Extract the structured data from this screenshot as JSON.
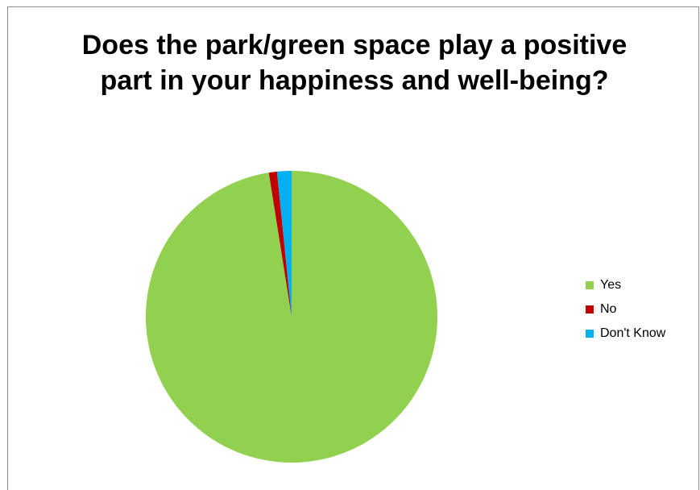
{
  "chart_data": {
    "type": "pie",
    "title": "Does the park/green space play a positive part in your happiness and well-being?",
    "categories": [
      "Yes",
      "No",
      "Don't Know"
    ],
    "values": [
      97.5,
      0.9,
      1.6
    ],
    "colors": [
      "#92d050",
      "#c00000",
      "#00b0f0"
    ],
    "legend_position": "right"
  }
}
